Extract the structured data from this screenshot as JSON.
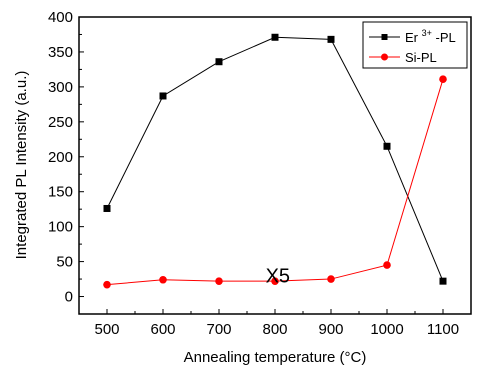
{
  "chart_data": {
    "type": "line",
    "xlabel": "Annealing temperature (°C)",
    "ylabel": "Integrated PL Intensity (a.u.)",
    "x": [
      500,
      600,
      700,
      800,
      900,
      1000,
      1100
    ],
    "xlim": [
      450,
      1150
    ],
    "ylim": [
      -25,
      400
    ],
    "x_ticks": [
      "500",
      "600",
      "700",
      "800",
      "900",
      "1000",
      "1100"
    ],
    "y_ticks": [
      "0",
      "50",
      "100",
      "150",
      "200",
      "250",
      "300",
      "350",
      "400"
    ],
    "series": [
      {
        "name_base": "Er",
        "name_sup": "3+",
        "name_tail": "-PL",
        "values": [
          126,
          287,
          336,
          371,
          368,
          215,
          22
        ],
        "color": "#000000",
        "marker": "square"
      },
      {
        "name": "Si-PL",
        "values": [
          17,
          24,
          22,
          22,
          25,
          45,
          311
        ],
        "color": "#ff0000",
        "marker": "circle"
      }
    ],
    "annotations": [
      {
        "text": "X5",
        "x": 805,
        "y": 30
      }
    ],
    "legend_position": "top-right",
    "grid": false
  }
}
